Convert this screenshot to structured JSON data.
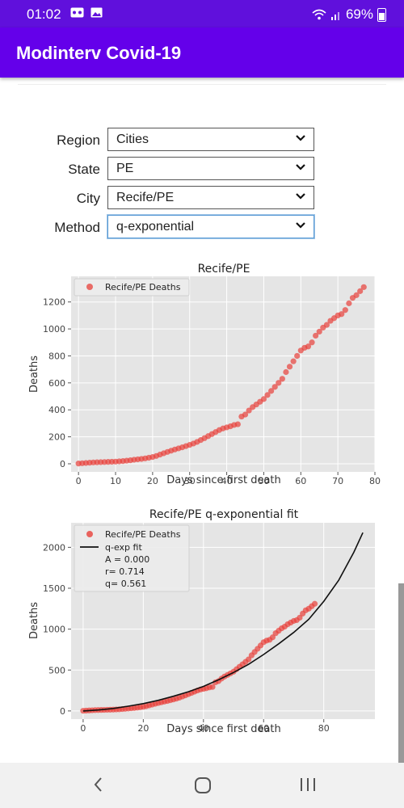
{
  "status": {
    "time": "01:02",
    "battery": "69%"
  },
  "app": {
    "title": "Modinterv Covid-19"
  },
  "form": {
    "region": {
      "label": "Region",
      "value": "Cities"
    },
    "state": {
      "label": "State",
      "value": "PE"
    },
    "city": {
      "label": "City",
      "value": "Recife/PE"
    },
    "method": {
      "label": "Method",
      "value": "q-exponential"
    }
  },
  "charts": {
    "deaths": {
      "title": "Recife/PE",
      "xlabel": "Days since first death",
      "ylabel": "Deaths",
      "legend": "Recife/PE Deaths"
    },
    "fit": {
      "title": "Recife/PE q-exponential fit",
      "xlabel": "Days since first death",
      "ylabel": "Deaths",
      "legend_points": "Recife/PE Deaths",
      "legend_fit": "q-exp fit",
      "param_a": "A = 0.000",
      "param_r": "r= 0.714",
      "param_q": "q= 0.561"
    }
  },
  "chart_data": [
    {
      "type": "scatter",
      "title": "Recife/PE",
      "xlabel": "Days since first death",
      "ylabel": "Deaths",
      "xlim": [
        -2,
        80
      ],
      "ylim": [
        -60,
        1390
      ],
      "xticks": [
        0,
        10,
        20,
        30,
        40,
        50,
        60,
        70,
        80
      ],
      "yticks": [
        0,
        200,
        400,
        600,
        800,
        1000,
        1200
      ],
      "grid": true,
      "legend_position": "top-left",
      "series": [
        {
          "name": "Recife/PE Deaths",
          "x": [
            0,
            1,
            2,
            3,
            4,
            5,
            6,
            7,
            8,
            9,
            10,
            11,
            12,
            13,
            14,
            15,
            16,
            17,
            18,
            19,
            20,
            21,
            22,
            23,
            24,
            25,
            26,
            27,
            28,
            29,
            30,
            31,
            32,
            33,
            34,
            35,
            36,
            37,
            38,
            39,
            40,
            41,
            42,
            43,
            44,
            45,
            46,
            47,
            48,
            49,
            50,
            51,
            52,
            53,
            54,
            55,
            56,
            57,
            58,
            59,
            60,
            61,
            62,
            63,
            64,
            65,
            66,
            67,
            68,
            69,
            70,
            71,
            72,
            73,
            74,
            75,
            76,
            77
          ],
          "y": [
            2,
            4,
            6,
            8,
            10,
            11,
            12,
            13,
            14,
            15,
            16,
            18,
            20,
            23,
            26,
            30,
            33,
            36,
            40,
            45,
            50,
            58,
            68,
            78,
            88,
            97,
            106,
            114,
            122,
            131,
            140,
            150,
            162,
            176,
            190,
            205,
            220,
            235,
            250,
            262,
            270,
            278,
            288,
            293,
            350,
            365,
            395,
            420,
            440,
            460,
            480,
            510,
            540,
            570,
            600,
            630,
            680,
            720,
            760,
            800,
            840,
            860,
            870,
            900,
            950,
            980,
            1010,
            1030,
            1060,
            1080,
            1100,
            1110,
            1140,
            1190,
            1230,
            1250,
            1280,
            1310
          ]
        }
      ]
    },
    {
      "type": "scatter",
      "title": "Recife/PE q-exponential fit",
      "xlabel": "Days since first death",
      "ylabel": "Deaths",
      "xlim": [
        -4,
        97
      ],
      "ylim": [
        -100,
        2300
      ],
      "xticks": [
        0,
        20,
        40,
        60,
        80
      ],
      "yticks": [
        0,
        500,
        1000,
        1500,
        2000
      ],
      "grid": true,
      "legend_position": "top-left",
      "fit_params": {
        "A": 0.0,
        "r": 0.714,
        "q": 0.561
      },
      "series": [
        {
          "name": "Recife/PE Deaths",
          "x": [
            0,
            1,
            2,
            3,
            4,
            5,
            6,
            7,
            8,
            9,
            10,
            11,
            12,
            13,
            14,
            15,
            16,
            17,
            18,
            19,
            20,
            21,
            22,
            23,
            24,
            25,
            26,
            27,
            28,
            29,
            30,
            31,
            32,
            33,
            34,
            35,
            36,
            37,
            38,
            39,
            40,
            41,
            42,
            43,
            44,
            45,
            46,
            47,
            48,
            49,
            50,
            51,
            52,
            53,
            54,
            55,
            56,
            57,
            58,
            59,
            60,
            61,
            62,
            63,
            64,
            65,
            66,
            67,
            68,
            69,
            70,
            71,
            72,
            73,
            74,
            75,
            76,
            77
          ],
          "y": [
            2,
            4,
            6,
            8,
            10,
            11,
            12,
            13,
            14,
            15,
            16,
            18,
            20,
            23,
            26,
            30,
            33,
            36,
            40,
            45,
            50,
            58,
            68,
            78,
            88,
            97,
            106,
            114,
            122,
            131,
            140,
            150,
            162,
            176,
            190,
            205,
            220,
            235,
            250,
            262,
            270,
            278,
            288,
            293,
            350,
            365,
            395,
            420,
            440,
            460,
            480,
            510,
            540,
            570,
            600,
            630,
            680,
            720,
            760,
            800,
            840,
            860,
            870,
            900,
            950,
            980,
            1010,
            1030,
            1060,
            1080,
            1100,
            1110,
            1140,
            1190,
            1230,
            1250,
            1280,
            1310
          ]
        },
        {
          "name": "q-exp fit",
          "x": [
            0,
            5,
            10,
            15,
            20,
            25,
            30,
            35,
            40,
            45,
            50,
            55,
            60,
            65,
            70,
            75,
            80,
            85,
            90,
            93
          ],
          "y": [
            0,
            12,
            30,
            58,
            90,
            130,
            180,
            235,
            300,
            380,
            470,
            570,
            690,
            820,
            960,
            1120,
            1340,
            1600,
            1940,
            2180
          ]
        }
      ]
    }
  ]
}
